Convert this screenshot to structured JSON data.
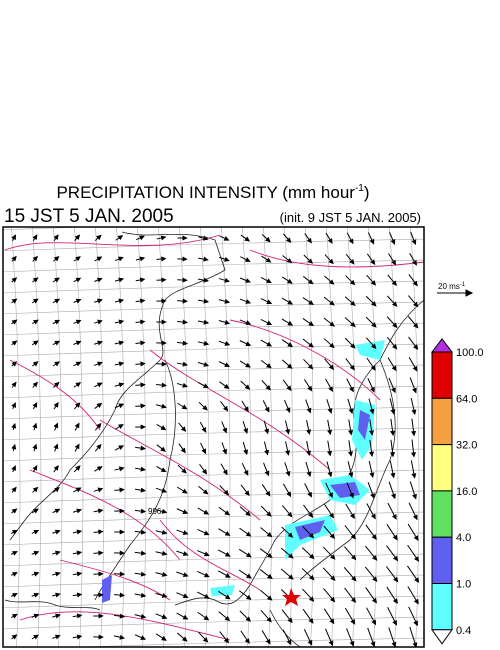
{
  "header": {
    "title": {
      "text": "PRECIPITATION INTENSITY (mm hour",
      "sup": "-1",
      "end": ")"
    },
    "valid_time": "15 JST 5 JAN. 2005",
    "init_time": "(init. 9 JST 5 JAN. 2005)"
  },
  "map": {
    "contour_label": "996"
  },
  "wind_scale": {
    "text": "20 ms",
    "sup": "-1"
  },
  "colorbar": {
    "levels": [
      {
        "label": "100.0",
        "color": "#e00000"
      },
      {
        "label": "64.0",
        "color": "#f5a040"
      },
      {
        "label": "32.0",
        "color": "#ffff80"
      },
      {
        "label": "16.0",
        "color": "#60e060"
      },
      {
        "label": "4.0",
        "color": "#6060f0"
      },
      {
        "label": "1.0",
        "color": "#60ffff"
      },
      {
        "label": "0.4",
        "color": "#ffffff"
      }
    ],
    "over_color": "#b030e0"
  }
}
